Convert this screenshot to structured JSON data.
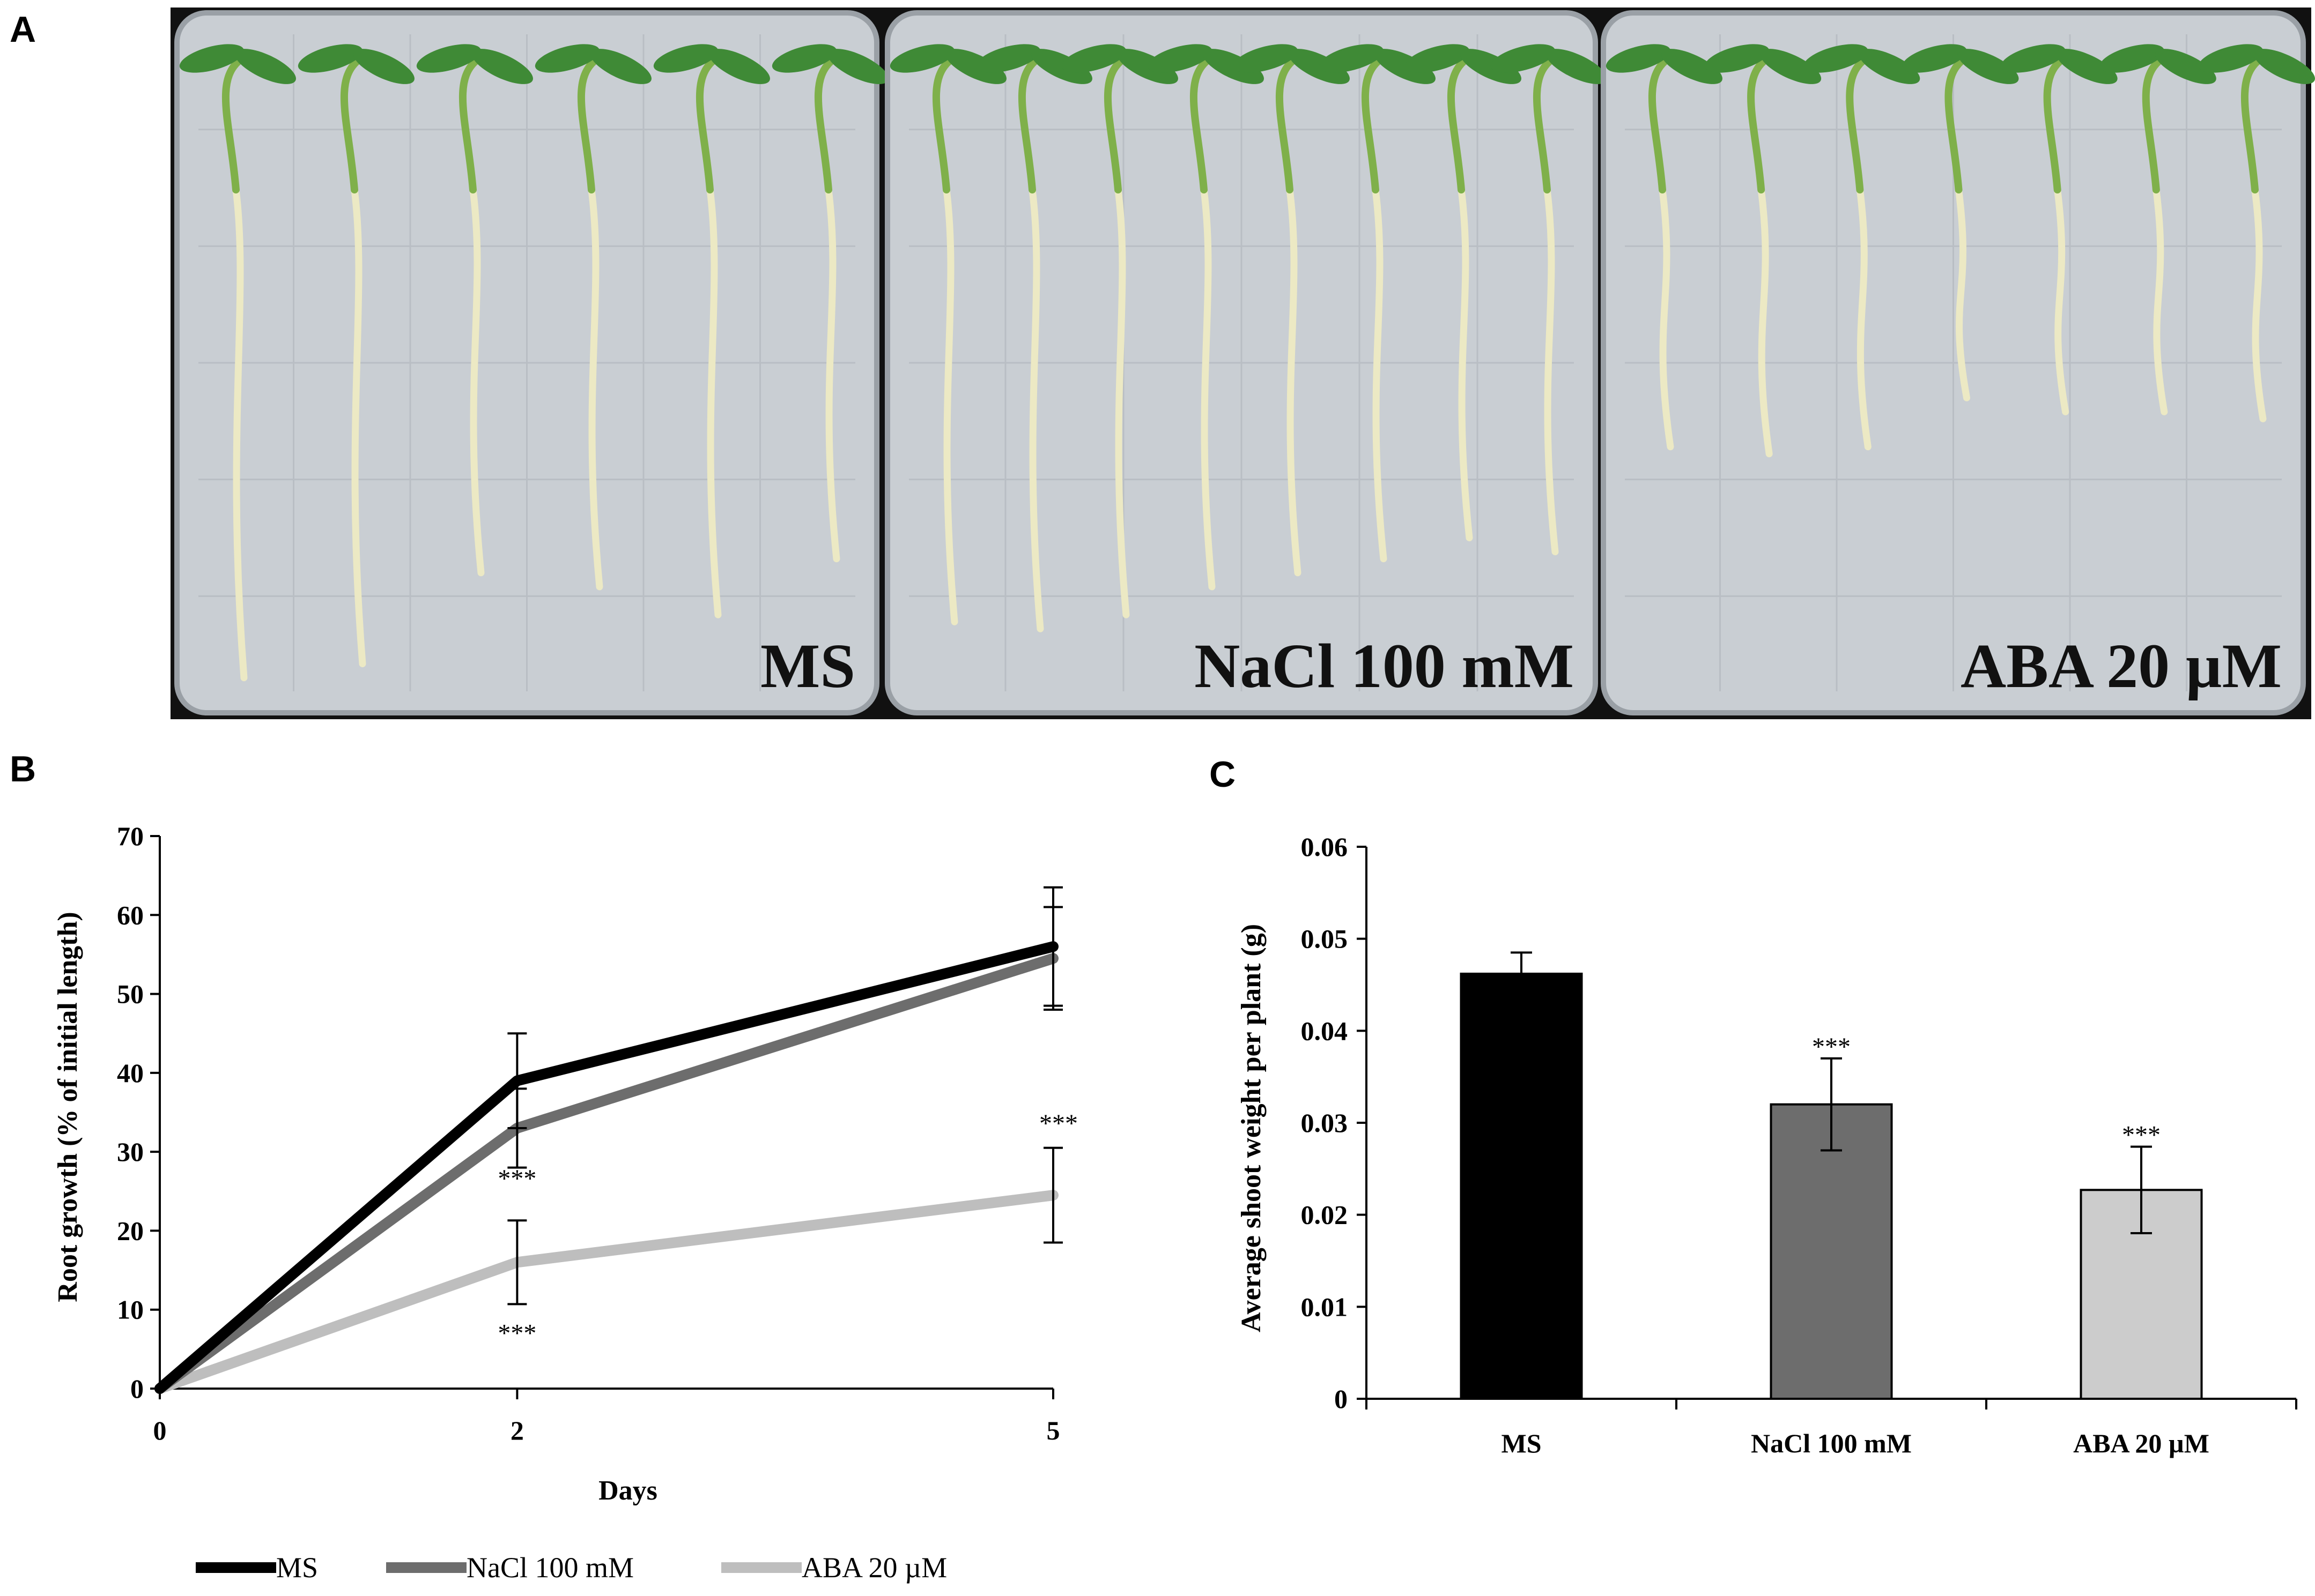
{
  "figure": {
    "panel_labels": [
      "A",
      "B",
      "C"
    ]
  },
  "panel_a": {
    "plates": [
      {
        "label": "MS"
      },
      {
        "label": "NaCl 100 mM"
      },
      {
        "label": "ABA 20 µM"
      }
    ],
    "colors": {
      "agar": "#c9ced3",
      "plate_border": "#9aa0a6",
      "root": "#ece9c4",
      "leaf": "#3f8a36",
      "stem": "#7fb04a",
      "frame": "#111111"
    }
  },
  "chart_data": [
    {
      "type": "line",
      "panel": "B",
      "title": "",
      "x": [
        0,
        2,
        5
      ],
      "x_tick_labels": [
        "0",
        "2",
        "5"
      ],
      "xlabel": "Days",
      "ylabel": "Root growth (% of initial length)",
      "ylim": [
        0,
        70
      ],
      "yticks": [
        0,
        10,
        20,
        30,
        40,
        50,
        60,
        70
      ],
      "grid": false,
      "legend_position": "bottom",
      "series": [
        {
          "name": "MS",
          "values": [
            0,
            39,
            56
          ],
          "errors": [
            0,
            6,
            7.5
          ],
          "color": "#000000",
          "annotations": [
            "",
            "",
            ""
          ]
        },
        {
          "name": "NaCl 100 mM",
          "values": [
            0,
            33,
            54.5
          ],
          "errors": [
            0,
            5,
            6.5
          ],
          "color": "#6d6d6d",
          "annotations": [
            "",
            "***",
            ""
          ]
        },
        {
          "name": "ABA 20 µM",
          "values": [
            0,
            16,
            24.5
          ],
          "errors": [
            0,
            5.3,
            6
          ],
          "color": "#bebebe",
          "annotations": [
            "",
            "***",
            "***"
          ]
        }
      ]
    },
    {
      "type": "bar",
      "panel": "C",
      "title": "",
      "categories": [
        "MS",
        "NaCl 100 mM",
        "ABA 20 µM"
      ],
      "values": [
        0.0462,
        0.032,
        0.0227
      ],
      "errors": [
        0.0023,
        0.005,
        0.0047
      ],
      "colors": [
        "#000000",
        "#6d6d6d",
        "#cccccc"
      ],
      "annotations": [
        "",
        "***",
        "***"
      ],
      "xlabel": "",
      "ylabel": "Average shoot weight per plant (g)",
      "ylim": [
        0,
        0.06
      ],
      "yticks": [
        0,
        0.01,
        0.02,
        0.03,
        0.04,
        0.05,
        0.06
      ],
      "ytick_labels": [
        "0",
        "0.01",
        "0.02",
        "0.03",
        "0.04",
        "0.05",
        "0.06"
      ],
      "grid": false
    }
  ]
}
